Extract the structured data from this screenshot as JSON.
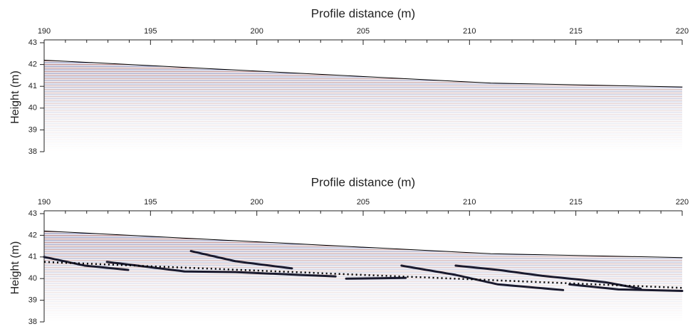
{
  "chart_data": [
    {
      "type": "line",
      "title": "Profile distance (m)",
      "ylabel": "Height (m)",
      "xlim": [
        190,
        220
      ],
      "ylim": [
        38,
        43
      ],
      "xticks": [
        190,
        195,
        200,
        205,
        210,
        215,
        220
      ],
      "xminorticks": [
        191,
        192,
        193,
        194,
        196,
        197,
        198,
        199,
        201,
        202,
        203,
        204,
        206,
        207,
        208,
        209,
        211,
        212,
        213,
        214,
        216,
        217,
        218,
        219
      ],
      "yticks": [
        38,
        39,
        40,
        41,
        42,
        43
      ],
      "series": [
        {
          "color": "#000000",
          "x": [
            190,
            211,
            220
          ],
          "values": [
            42.2,
            41.15,
            40.97
          ]
        }
      ]
    },
    {
      "type": "line",
      "title": "Profile distance (m)",
      "ylabel": "Height (m)",
      "xlim": [
        190,
        220
      ],
      "ylim": [
        38,
        43
      ],
      "xticks": [
        190,
        195,
        200,
        205,
        210,
        215,
        220
      ],
      "xminorticks": [
        191,
        192,
        193,
        194,
        196,
        197,
        198,
        199,
        201,
        202,
        203,
        204,
        206,
        207,
        208,
        209,
        211,
        212,
        213,
        214,
        216,
        217,
        218,
        219
      ],
      "yticks": [
        38,
        39,
        40,
        41,
        42,
        43
      ],
      "series": [
        {
          "color": "#000000",
          "x": [
            190,
            211,
            220
          ],
          "values": [
            42.2,
            41.15,
            40.97
          ]
        },
        {
          "color": "#1a1a2e",
          "x": [
            190,
            191.9,
            193.95
          ],
          "values": [
            41.0,
            40.6,
            40.4
          ]
        },
        {
          "color": "#1a1a2e",
          "x": [
            192.95,
            196.6,
            199,
            202,
            203.7
          ],
          "values": [
            40.77,
            40.33,
            40.3,
            40.17,
            40.1
          ]
        },
        {
          "color": "#1a1a2e",
          "x": [
            196.9,
            199,
            201.65
          ],
          "values": [
            41.27,
            40.8,
            40.47
          ]
        },
        {
          "color": "#1a1a2e",
          "x": [
            204.2,
            207
          ],
          "values": [
            40.0,
            40.03
          ]
        },
        {
          "color": "#1a1a2e",
          "x": [
            206.8,
            209.35,
            211.35,
            214.4
          ],
          "values": [
            40.6,
            40.17,
            39.73,
            39.47
          ]
        },
        {
          "color": "#1a1a2e",
          "x": [
            209.35,
            211.35,
            213.4,
            216.4,
            218.05
          ],
          "values": [
            40.6,
            40.4,
            40.13,
            39.83,
            39.53
          ]
        },
        {
          "color": "#1a1a2e",
          "x": [
            214.7,
            217,
            220
          ],
          "values": [
            39.73,
            39.5,
            39.43
          ]
        },
        {
          "color": "#000000",
          "dashed": true,
          "x": [
            190,
            220
          ],
          "values": [
            40.77,
            39.57
          ]
        }
      ]
    }
  ]
}
